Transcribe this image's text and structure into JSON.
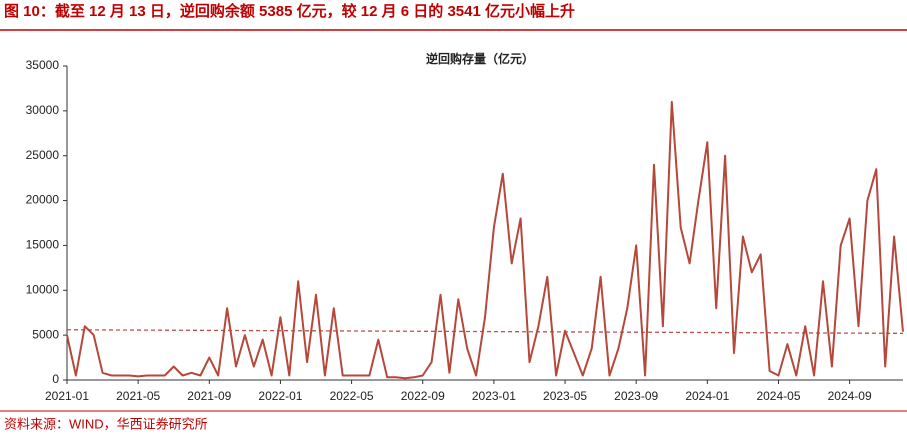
{
  "chart_data": {
    "type": "line",
    "title": "图 10：截至 12 月 13 日，逆回购余额 5385 亿元，较 12 月 6 日的 3541 亿元小幅上升",
    "source": "资料来源：WIND，华西证券研究所",
    "categories": [
      "2021-01",
      null,
      null,
      null,
      null,
      null,
      null,
      null,
      "2021-05",
      null,
      null,
      null,
      null,
      null,
      null,
      null,
      "2021-09",
      null,
      null,
      null,
      null,
      null,
      null,
      null,
      "2022-01",
      null,
      null,
      null,
      null,
      null,
      null,
      null,
      "2022-05",
      null,
      null,
      null,
      null,
      null,
      null,
      null,
      "2022-09",
      null,
      null,
      null,
      null,
      null,
      null,
      null,
      "2023-01",
      null,
      null,
      null,
      null,
      null,
      null,
      null,
      "2023-05",
      null,
      null,
      null,
      null,
      null,
      null,
      null,
      "2023-09",
      null,
      null,
      null,
      null,
      null,
      null,
      null,
      "2024-01",
      null,
      null,
      null,
      null,
      null,
      null,
      null,
      "2024-05",
      null,
      null,
      null,
      null,
      null,
      null,
      null,
      "2024-09",
      null,
      null,
      null,
      null,
      null,
      null
    ],
    "series": [
      {
        "name": "逆回购存量（亿元）",
        "color": "#b5483a",
        "values": [
          5000,
          500,
          6000,
          5000,
          800,
          500,
          500,
          500,
          400,
          500,
          500,
          500,
          1500,
          500,
          800,
          500,
          2500,
          500,
          8000,
          1500,
          5000,
          1500,
          4500,
          500,
          7000,
          500,
          11000,
          2000,
          9500,
          500,
          8000,
          500,
          500,
          500,
          500,
          4500,
          300,
          300,
          200,
          300,
          500,
          2000,
          9500,
          800,
          9000,
          3500,
          500,
          7000,
          17000,
          23000,
          13000,
          18000,
          2000,
          6000,
          11500,
          500,
          5500,
          3000,
          500,
          3500,
          11500,
          500,
          3500,
          8000,
          15000,
          500,
          24000,
          6000,
          31000,
          17000,
          13000,
          20000,
          26500,
          8000,
          25000,
          3000,
          16000,
          12000,
          14000,
          1000,
          500,
          4000,
          500,
          6000,
          500,
          11000,
          1500,
          15000,
          18000,
          6000,
          20000,
          23500,
          1500,
          16000,
          5385
        ]
      }
    ],
    "trendline": {
      "color": "#c0504d",
      "values": [
        5600,
        5200
      ]
    },
    "ylim": [
      0,
      35000
    ],
    "yticks": [
      0,
      5000,
      10000,
      15000,
      20000,
      25000,
      30000,
      35000
    ]
  }
}
